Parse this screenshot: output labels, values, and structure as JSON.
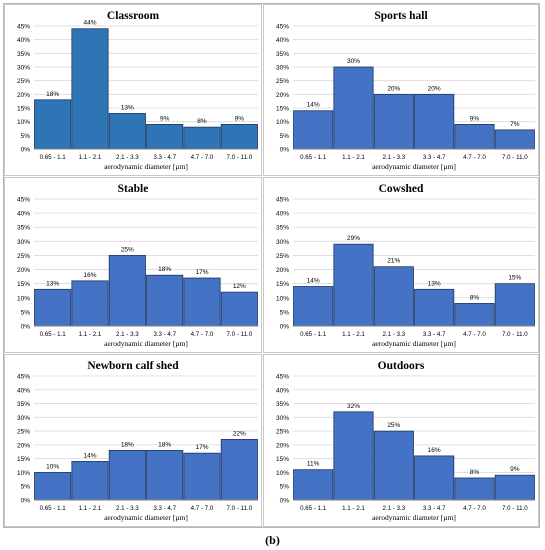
{
  "caption": "(b)",
  "colors": {
    "bar_fill": "#4472C4",
    "bar_fill_first": "#2E75B6",
    "bar_stroke": "#1F3864",
    "grid": "#d9d9d9",
    "axis": "#808080",
    "text": "#000000"
  },
  "chart_data": [
    {
      "type": "bar",
      "title": "Classroom",
      "categories": [
        "0.65 - 1.1",
        "1.1 - 2.1",
        "2.1 - 3.3",
        "3.3 - 4.7",
        "4.7 - 7.0",
        "7.0 - 11.0"
      ],
      "values": [
        18,
        44,
        13,
        9,
        8,
        9
      ],
      "data_labels": [
        "18%",
        "44%",
        "13%",
        "9%",
        "8%",
        "9%"
      ],
      "xlabel": "aerodynamic diameter [µm]",
      "ylabel": "",
      "ylim": [
        0,
        45
      ],
      "yticks": [
        "0%",
        "5%",
        "10%",
        "15%",
        "20%",
        "25%",
        "30%",
        "35%",
        "40%",
        "45%"
      ],
      "grid": true
    },
    {
      "type": "bar",
      "title": "Sports hall",
      "categories": [
        "0.65 - 1.1",
        "1.1 - 2.1",
        "2.1 - 3.3",
        "3.3 - 4.7",
        "4.7 - 7.0",
        "7.0 - 11.0"
      ],
      "values": [
        14,
        30,
        20,
        20,
        9,
        7
      ],
      "data_labels": [
        "14%",
        "30%",
        "20%",
        "20%",
        "9%",
        "7%"
      ],
      "xlabel": "aerodynamic diameter [µm]",
      "ylabel": "",
      "ylim": [
        0,
        45
      ],
      "yticks": [
        "0%",
        "5%",
        "10%",
        "15%",
        "20%",
        "25%",
        "30%",
        "35%",
        "40%",
        "45%"
      ],
      "grid": true
    },
    {
      "type": "bar",
      "title": "Stable",
      "categories": [
        "0.65 - 1.1",
        "1.1 - 2.1",
        "2.1 - 3.3",
        "3.3 - 4.7",
        "4.7 - 7.0",
        "7.0 - 11.0"
      ],
      "values": [
        13,
        16,
        25,
        18,
        17,
        12
      ],
      "data_labels": [
        "13%",
        "16%",
        "25%",
        "18%",
        "17%",
        "12%"
      ],
      "xlabel": "aerodynamic diameter [µm]",
      "ylabel": "",
      "ylim": [
        0,
        45
      ],
      "yticks": [
        "0%",
        "5%",
        "10%",
        "15%",
        "20%",
        "25%",
        "30%",
        "35%",
        "40%",
        "45%"
      ],
      "grid": true
    },
    {
      "type": "bar",
      "title": "Cowshed",
      "categories": [
        "0.65 - 1.1",
        "1.1 - 2.1",
        "2.1 - 3.3",
        "3.3 - 4.7",
        "4.7 - 7.0",
        "7.0 - 11.0"
      ],
      "values": [
        14,
        29,
        21,
        13,
        8,
        15
      ],
      "data_labels": [
        "14%",
        "29%",
        "21%",
        "13%",
        "8%",
        "15%"
      ],
      "xlabel": "aerodynamic diameter [µm]",
      "ylabel": "",
      "ylim": [
        0,
        45
      ],
      "yticks": [
        "0%",
        "5%",
        "10%",
        "15%",
        "20%",
        "25%",
        "30%",
        "35%",
        "40%",
        "45%"
      ],
      "grid": true
    },
    {
      "type": "bar",
      "title": "Newborn calf shed",
      "categories": [
        "0.65 - 1.1",
        "1.1 - 2.1",
        "2.1 - 3.3",
        "3.3 - 4.7",
        "4.7 - 7.0",
        "7.0 - 11.0"
      ],
      "values": [
        10,
        14,
        18,
        18,
        17,
        22
      ],
      "data_labels": [
        "10%",
        "14%",
        "18%",
        "18%",
        "17%",
        "22%"
      ],
      "xlabel": "aerodynamic diameter [µm]",
      "ylabel": "",
      "ylim": [
        0,
        45
      ],
      "yticks": [
        "0%",
        "5%",
        "10%",
        "15%",
        "20%",
        "25%",
        "30%",
        "35%",
        "40%",
        "45%"
      ],
      "grid": true
    },
    {
      "type": "bar",
      "title": "Outdoors",
      "categories": [
        "0.65 - 1.1",
        "1.1 - 2.1",
        "2.1 - 3.3",
        "3.3 - 4.7",
        "4.7 - 7.0",
        "7.0 - 11.0"
      ],
      "values": [
        11,
        32,
        25,
        16,
        8,
        9
      ],
      "data_labels": [
        "11%",
        "32%",
        "25%",
        "16%",
        "8%",
        "9%"
      ],
      "xlabel": "aerodynamic diameter [µm]",
      "ylabel": "",
      "ylim": [
        0,
        45
      ],
      "yticks": [
        "0%",
        "5%",
        "10%",
        "15%",
        "20%",
        "25%",
        "30%",
        "35%",
        "40%",
        "45%"
      ],
      "grid": true
    }
  ]
}
